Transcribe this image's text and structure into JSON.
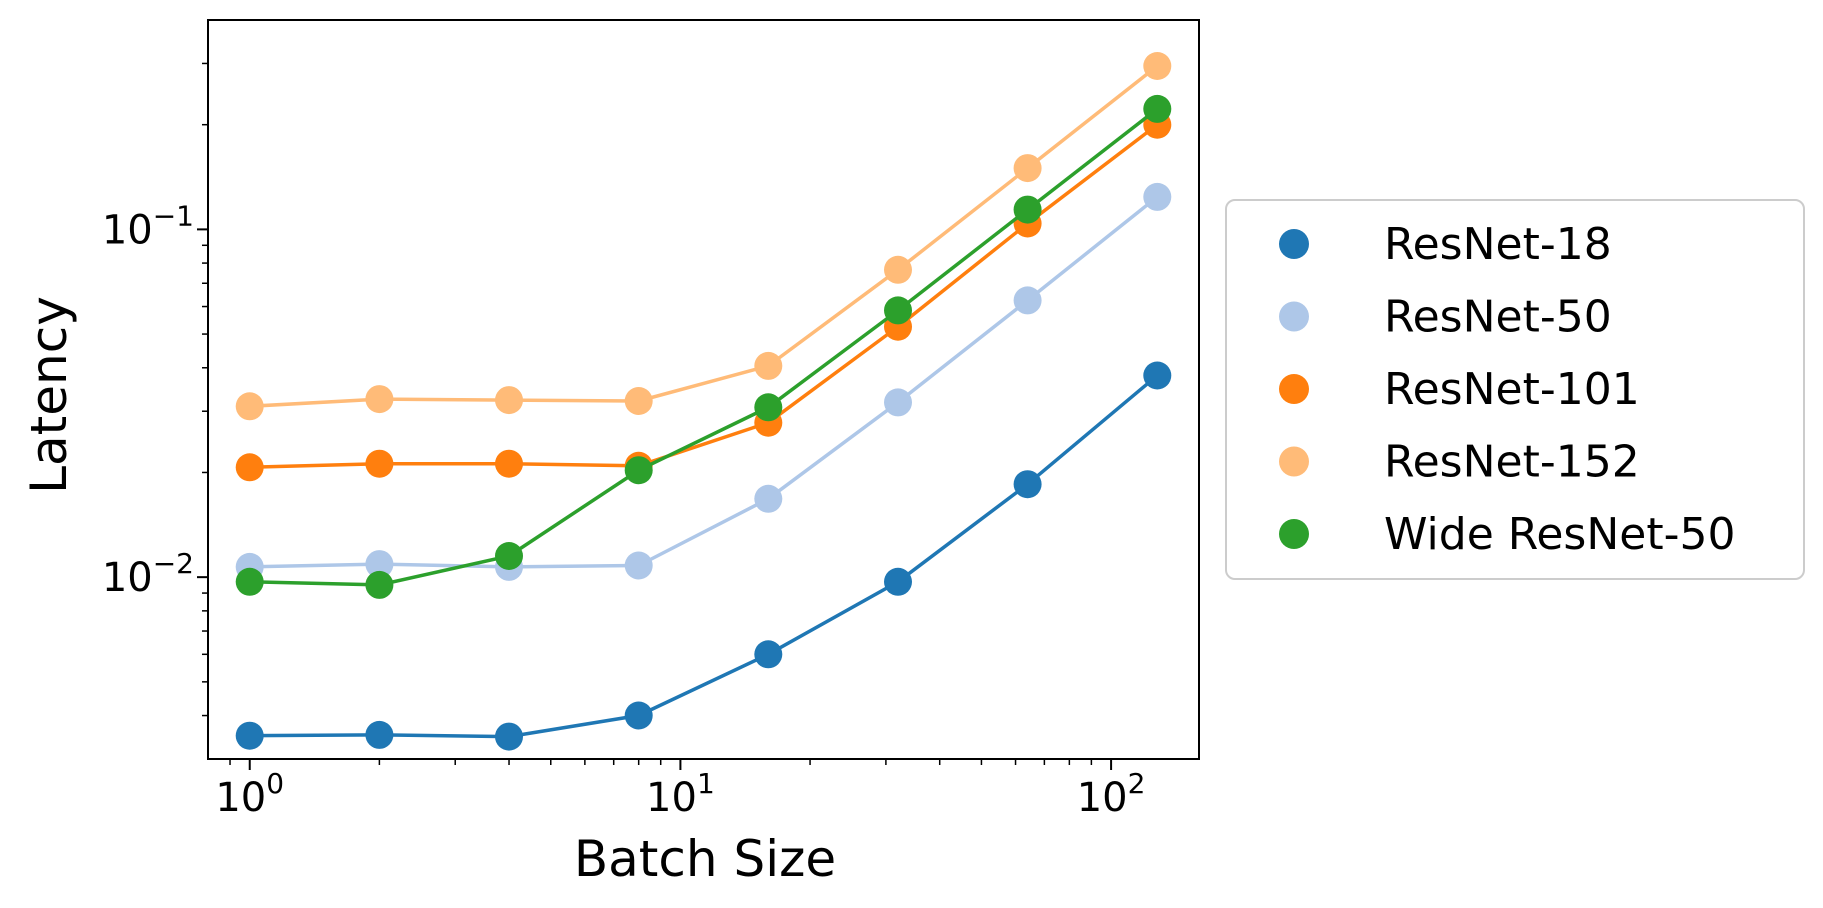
{
  "chart_data": {
    "type": "line",
    "xlabel": "Batch Size",
    "ylabel": "Latency",
    "x_scale": "log",
    "y_scale": "log",
    "xlim": [
      0.8,
      160
    ],
    "ylim": [
      0.003,
      0.4
    ],
    "x_ticks": [
      {
        "value": 1,
        "base": "10",
        "exp": "0"
      },
      {
        "value": 10,
        "base": "10",
        "exp": "1"
      },
      {
        "value": 100,
        "base": "10",
        "exp": "2"
      }
    ],
    "y_ticks": [
      {
        "value": 0.01,
        "base": "10",
        "exp": "−2"
      },
      {
        "value": 0.1,
        "base": "10",
        "exp": "−1"
      }
    ],
    "x": [
      1,
      2,
      4,
      8,
      16,
      32,
      64,
      128
    ],
    "series": [
      {
        "name": "ResNet-18",
        "color": "#1f77b4",
        "values": [
          0.0035,
          0.00352,
          0.00348,
          0.004,
          0.006,
          0.0097,
          0.0185,
          0.038
        ]
      },
      {
        "name": "ResNet-50",
        "color": "#aec7e8",
        "values": [
          0.0107,
          0.0109,
          0.0107,
          0.0108,
          0.0168,
          0.0318,
          0.0625,
          0.124
        ]
      },
      {
        "name": "ResNet-101",
        "color": "#ff7f0e",
        "values": [
          0.0207,
          0.0212,
          0.0212,
          0.0209,
          0.0278,
          0.0525,
          0.104,
          0.2
        ]
      },
      {
        "name": "ResNet-152",
        "color": "#ffbb78",
        "values": [
          0.031,
          0.0325,
          0.0323,
          0.0321,
          0.0405,
          0.0765,
          0.15,
          0.295
        ]
      },
      {
        "name": "Wide ResNet-50",
        "color": "#2ca02c",
        "values": [
          0.0097,
          0.0095,
          0.0115,
          0.0203,
          0.0308,
          0.0585,
          0.114,
          0.222
        ]
      }
    ],
    "grid": false,
    "legend_position": "outside-right"
  }
}
